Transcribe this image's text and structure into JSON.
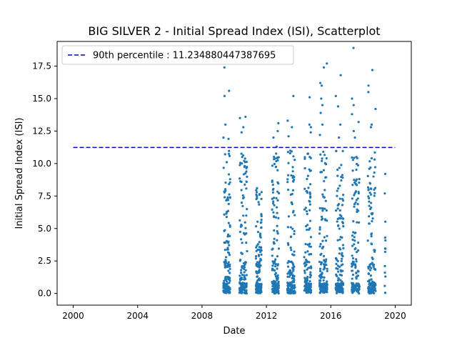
{
  "chart_data": {
    "type": "scatter",
    "title": "BIG SILVER 2 - Initial Spread Index (ISI), Scatterplot",
    "xlabel": "Date",
    "ylabel": "Initial Spread Index (ISI)",
    "xlim": [
      1999.0,
      2021.0
    ],
    "ylim": [
      -0.9,
      19.4
    ],
    "x_ticks": [
      2000,
      2004,
      2008,
      2012,
      2016,
      2020
    ],
    "x_tick_labels": [
      "2000",
      "2004",
      "2008",
      "2012",
      "2016",
      "2020"
    ],
    "y_ticks": [
      0.0,
      2.5,
      5.0,
      7.5,
      10.0,
      12.5,
      15.0,
      17.5
    ],
    "y_tick_labels": [
      "0.0",
      "2.5",
      "5.0",
      "7.5",
      "10.0",
      "12.5",
      "15.0",
      "17.5"
    ],
    "grid": false,
    "legend_position": "upper left",
    "threshold": {
      "name": "90th percentile : 11.234880447387695",
      "value": 11.234880447387695,
      "x_range": [
        2000.0,
        2020.0
      ],
      "color": "#0000cc",
      "style": "dashed"
    },
    "series_color": "#1f77b4",
    "seasons": [
      {
        "start": 2009.33,
        "end": 2009.75,
        "max": 17.4,
        "peaks": [
          17.4,
          15.6,
          15.2,
          12.0,
          11.9,
          13.0
        ]
      },
      {
        "start": 2010.33,
        "end": 2010.8,
        "max": 13.6,
        "peaks": [
          13.6,
          13.5,
          12.8,
          12.4,
          10.2
        ]
      },
      {
        "start": 2011.35,
        "end": 2011.7,
        "max": 8.1,
        "peaks": [
          8.1,
          7.8,
          7.5
        ]
      },
      {
        "start": 2012.35,
        "end": 2012.78,
        "max": 13.1,
        "peaks": [
          13.1,
          12.5,
          12.0,
          11.3
        ]
      },
      {
        "start": 2013.3,
        "end": 2013.78,
        "max": 15.2,
        "peaks": [
          15.2,
          13.3,
          12.8,
          12.1
        ]
      },
      {
        "start": 2014.35,
        "end": 2014.78,
        "max": 15.1,
        "peaks": [
          15.1,
          13.0,
          12.8,
          12.4
        ]
      },
      {
        "start": 2015.3,
        "end": 2015.78,
        "max": 17.7,
        "peaks": [
          17.7,
          17.4,
          16.2,
          16.0,
          15.0,
          14.5,
          13.9,
          13.0,
          12.2
        ]
      },
      {
        "start": 2016.3,
        "end": 2016.78,
        "max": 16.8,
        "peaks": [
          16.8,
          15.2,
          14.4,
          13.0,
          12.0
        ]
      },
      {
        "start": 2017.3,
        "end": 2017.78,
        "max": 18.9,
        "peaks": [
          18.9,
          15.0,
          14.5,
          13.8,
          13.2,
          12.5,
          12.0
        ]
      },
      {
        "start": 2018.3,
        "end": 2018.78,
        "max": 17.2,
        "peaks": [
          17.2,
          16.0,
          15.5,
          14.2,
          13.0,
          12.8
        ]
      },
      {
        "start": 2019.35,
        "end": 2019.4,
        "max": 9.2,
        "peaks": [
          9.2,
          7.7,
          4.3,
          3.2,
          1.6
        ]
      }
    ]
  }
}
